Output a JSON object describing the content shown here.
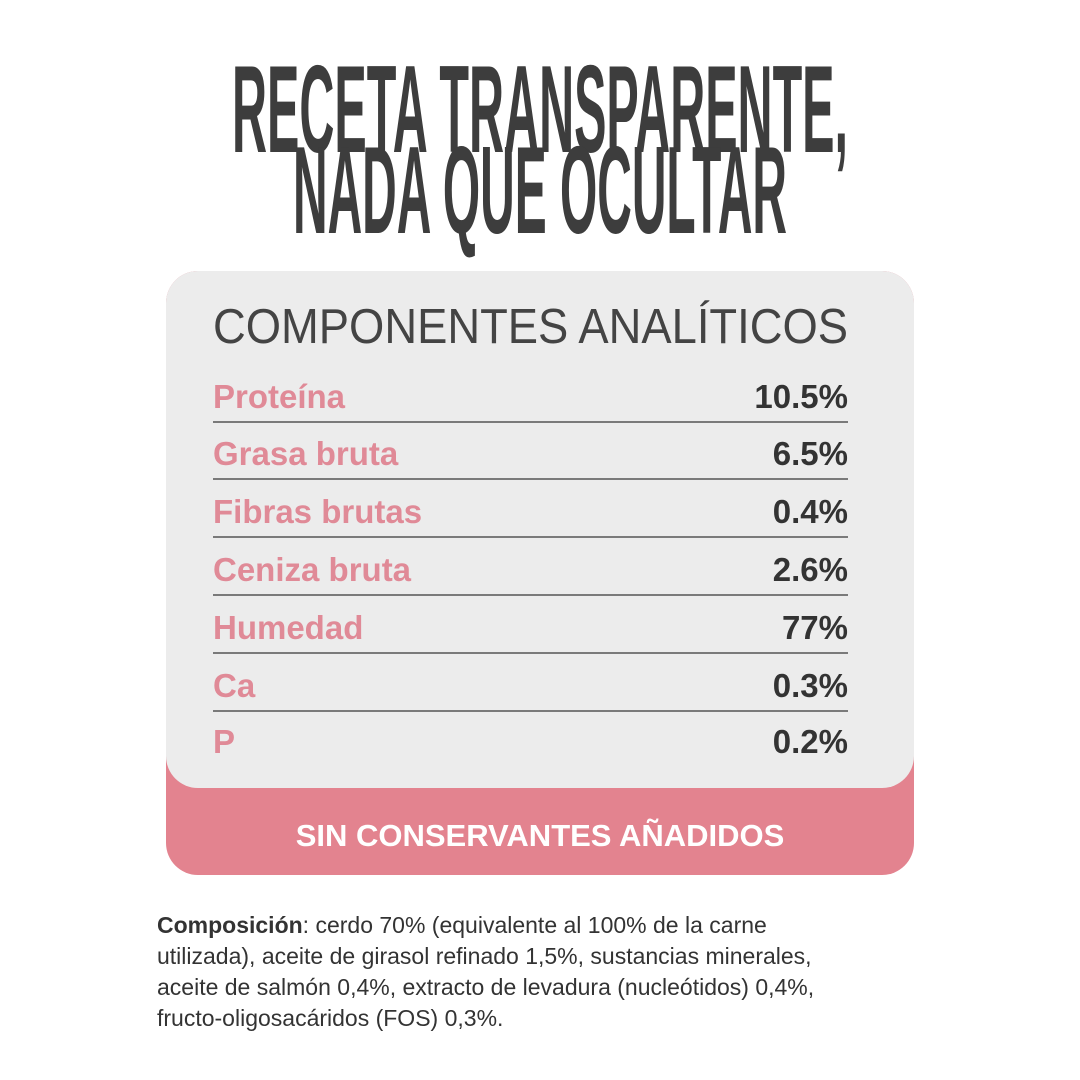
{
  "header": {
    "title": [
      "RECETA TRANSPARENTE,",
      "NADA QUE OCULTAR"
    ]
  },
  "table": {
    "heading": "COMPONENTES ANALÍTICOS",
    "rows": [
      [
        "Proteína",
        "10.5%"
      ],
      [
        "Grasa bruta",
        "6.5%"
      ],
      [
        "Fibras brutas",
        "0.4%"
      ],
      [
        "Ceniza bruta",
        "2.6%"
      ],
      [
        "Humedad",
        "77%"
      ],
      [
        "Ca",
        "0.3%"
      ],
      [
        "P",
        "0.2%"
      ]
    ],
    "banner": "SIN CONSERVANTES AÑADIDOS"
  },
  "composition": {
    "label": "Composición",
    "lines": [
      ": cerdo 70% (equivalente al 100% de la carne",
      "utilizada), aceite de girasol refinado 1,5%, sustancias minerales,",
      "aceite de salmón 0,4%, extracto de levadura (nucleótidos) 0,4%,",
      "fructo-oligosacáridos (FOS) 0,3%."
    ]
  }
}
